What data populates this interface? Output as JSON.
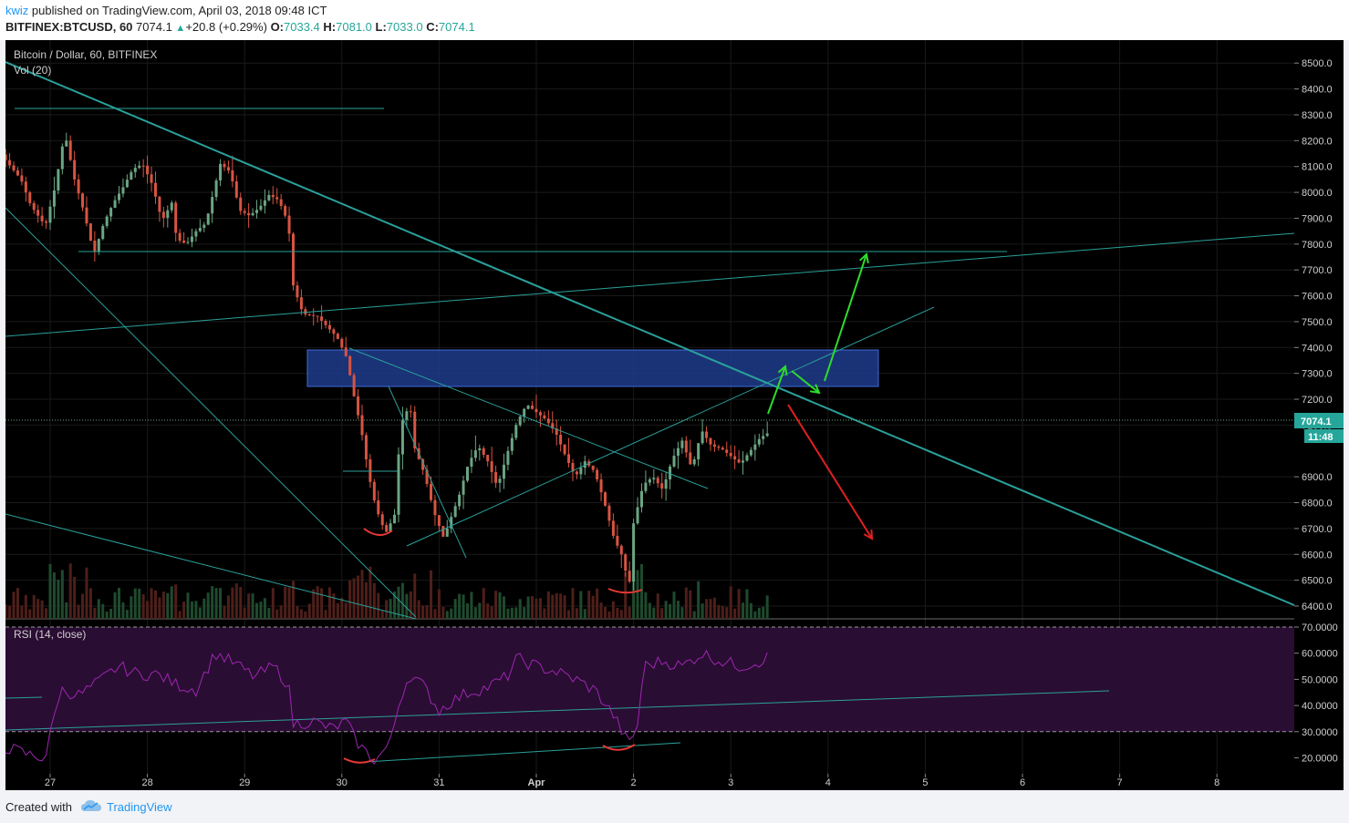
{
  "header": {
    "author": "kwiz",
    "published_text": " published on TradingView.com, April 03, 2018 09:48 ICT",
    "symbol": "BITFINEX:BTCUSD, 60",
    "last": "7074.1",
    "change": "+20.8 (+0.29%)",
    "o_label": "O:",
    "o_value": "7033.4",
    "h_label": "H:",
    "h_value": "7081.0",
    "l_label": "L:",
    "l_value": "7033.0",
    "c_label": "C:",
    "c_value": "7074.1"
  },
  "footer": {
    "created_with": "Created with",
    "brand": "TradingView"
  },
  "colors": {
    "background": "#000000",
    "up": "#26a69a",
    "up_candle": "#6ba583",
    "down_candle": "#d75442",
    "trendline": "#2aa09a",
    "blue_zone": "#1e3c8c",
    "rsi_line": "#9c27b0",
    "rsi_band": "#2a0d33",
    "green_arrow": "#2ddb2d",
    "red_arrow": "#e02020",
    "red_curve": "#e53935"
  },
  "chart_data": [
    {
      "type": "candlestick",
      "title": "Bitcoin / Dollar, 60, BITFINEX",
      "volume_label": "Vol (20)",
      "x_ticks": [
        "27",
        "28",
        "29",
        "30",
        "31",
        "Apr",
        "2",
        "3",
        "4",
        "5",
        "6",
        "7",
        "8"
      ],
      "y_ticks": [
        "8500.0",
        "8400.0",
        "8300.0",
        "8200.0",
        "8100.0",
        "8000.0",
        "7900.0",
        "7800.0",
        "7700.0",
        "7600.0",
        "7500.0",
        "7400.0",
        "7300.0",
        "7200.0",
        "7100.0",
        "6900.0",
        "6800.0",
        "6700.0",
        "6600.0",
        "6500.0",
        "6400.0"
      ],
      "ylim": [
        6350,
        8560
      ],
      "last_price": "7074.1",
      "countdown": "11:48",
      "price_path": [
        [
          26.2,
          8420
        ],
        [
          26.3,
          8300
        ],
        [
          26.4,
          8200
        ],
        [
          26.55,
          8120
        ],
        [
          26.7,
          8050
        ],
        [
          26.8,
          7950
        ],
        [
          26.95,
          7870
        ],
        [
          27.05,
          8020
        ],
        [
          27.15,
          8230
        ],
        [
          27.25,
          8050
        ],
        [
          27.35,
          7920
        ],
        [
          27.45,
          7760
        ],
        [
          27.55,
          7880
        ],
        [
          27.65,
          7960
        ],
        [
          27.75,
          8020
        ],
        [
          27.85,
          8090
        ],
        [
          27.95,
          8110
        ],
        [
          28.05,
          8030
        ],
        [
          28.15,
          7890
        ],
        [
          28.25,
          7960
        ],
        [
          28.3,
          7820
        ],
        [
          28.4,
          7800
        ],
        [
          28.5,
          7850
        ],
        [
          28.6,
          7880
        ],
        [
          28.75,
          8110
        ],
        [
          28.85,
          8080
        ],
        [
          28.95,
          7930
        ],
        [
          29.05,
          7910
        ],
        [
          29.15,
          7940
        ],
        [
          29.25,
          7990
        ],
        [
          29.35,
          7970
        ],
        [
          29.45,
          7880
        ],
        [
          29.5,
          7640
        ],
        [
          29.6,
          7530
        ],
        [
          29.75,
          7520
        ],
        [
          29.85,
          7480
        ],
        [
          29.95,
          7440
        ],
        [
          30.05,
          7360
        ],
        [
          30.12,
          7220
        ],
        [
          30.2,
          7080
        ],
        [
          30.28,
          6900
        ],
        [
          30.35,
          6780
        ],
        [
          30.45,
          6680
        ],
        [
          30.55,
          6760
        ],
        [
          30.6,
          7100
        ],
        [
          30.7,
          7180
        ],
        [
          30.75,
          7010
        ],
        [
          30.85,
          6910
        ],
        [
          30.95,
          6760
        ],
        [
          31.05,
          6660
        ],
        [
          31.1,
          6720
        ],
        [
          31.2,
          6820
        ],
        [
          31.3,
          6950
        ],
        [
          31.4,
          7020
        ],
        [
          31.5,
          6960
        ],
        [
          31.6,
          6860
        ],
        [
          31.7,
          6990
        ],
        [
          31.8,
          7110
        ],
        [
          31.9,
          7180
        ],
        [
          32.0,
          7150
        ],
        [
          32.1,
          7120
        ],
        [
          32.2,
          7070
        ],
        [
          32.3,
          6980
        ],
        [
          32.4,
          6900
        ],
        [
          32.5,
          6960
        ],
        [
          32.6,
          6920
        ],
        [
          32.7,
          6800
        ],
        [
          32.8,
          6660
        ],
        [
          32.9,
          6580
        ],
        [
          32.95,
          6450
        ],
        [
          33.0,
          6720
        ],
        [
          33.1,
          6870
        ],
        [
          33.2,
          6900
        ],
        [
          33.3,
          6850
        ],
        [
          33.4,
          6970
        ],
        [
          33.5,
          7040
        ],
        [
          33.6,
          6930
        ],
        [
          33.7,
          7080
        ],
        [
          33.8,
          7020
        ],
        [
          33.9,
          7010
        ],
        [
          34.0,
          6980
        ],
        [
          34.1,
          6950
        ],
        [
          34.2,
          7000
        ],
        [
          34.3,
          7050
        ],
        [
          34.4,
          7074
        ]
      ]
    },
    {
      "type": "line",
      "title": "RSI (14, close)",
      "ylim": [
        15,
        72
      ],
      "y_ticks": [
        "70.0000",
        "60.0000",
        "50.0000",
        "40.0000",
        "30.0000",
        "20.0000"
      ],
      "bands": [
        30,
        70
      ],
      "rsi_path": [
        [
          26.0,
          38
        ],
        [
          26.3,
          25
        ],
        [
          26.55,
          24
        ],
        [
          26.8,
          21
        ],
        [
          26.95,
          20
        ],
        [
          27.1,
          46
        ],
        [
          27.3,
          44
        ],
        [
          27.5,
          49
        ],
        [
          27.7,
          55
        ],
        [
          27.9,
          52
        ],
        [
          28.1,
          52
        ],
        [
          28.3,
          48
        ],
        [
          28.5,
          46
        ],
        [
          28.7,
          60
        ],
        [
          28.9,
          56
        ],
        [
          29.1,
          51
        ],
        [
          29.3,
          55
        ],
        [
          29.45,
          48
        ],
        [
          29.5,
          33
        ],
        [
          29.7,
          34
        ],
        [
          29.9,
          31
        ],
        [
          30.05,
          34
        ],
        [
          30.12,
          28
        ],
        [
          30.2,
          24
        ],
        [
          30.28,
          21
        ],
        [
          30.35,
          19
        ],
        [
          30.5,
          26
        ],
        [
          30.6,
          43
        ],
        [
          30.7,
          52
        ],
        [
          30.85,
          47
        ],
        [
          31.0,
          38
        ],
        [
          31.1,
          41
        ],
        [
          31.3,
          45
        ],
        [
          31.5,
          47
        ],
        [
          31.7,
          51
        ],
        [
          31.8,
          58
        ],
        [
          32.0,
          55
        ],
        [
          32.2,
          53
        ],
        [
          32.4,
          50
        ],
        [
          32.6,
          46
        ],
        [
          32.8,
          36
        ],
        [
          32.95,
          25
        ],
        [
          33.05,
          33
        ],
        [
          33.1,
          55
        ],
        [
          33.3,
          57
        ],
        [
          33.5,
          55
        ],
        [
          33.7,
          60
        ],
        [
          33.9,
          57
        ],
        [
          34.1,
          55
        ],
        [
          34.3,
          57
        ],
        [
          34.4,
          59
        ]
      ]
    }
  ]
}
